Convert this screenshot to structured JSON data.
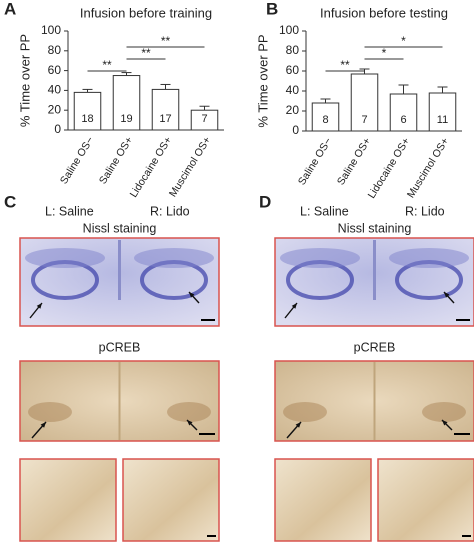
{
  "chart_data": [
    {
      "type": "bar",
      "panel_label": "A",
      "title": "Infusion before training",
      "y_label": "% Time over PP",
      "categories": [
        "Saline OS−",
        "Saline OS+",
        "Lidocaine OS+",
        "Muscimol OS+"
      ],
      "values": [
        38,
        55,
        41,
        20
      ],
      "errors": [
        3,
        3,
        5,
        4
      ],
      "n_labels": [
        "18",
        "19",
        "17",
        "7"
      ],
      "color": "#ffffff",
      "ylim": [
        0,
        100
      ],
      "yticks": [
        0,
        20,
        40,
        60,
        80,
        100
      ],
      "significance": [
        {
          "from": 0,
          "to": 1,
          "label": "**"
        },
        {
          "from": 1,
          "to": 2,
          "label": "**"
        },
        {
          "from": 1,
          "to": 3,
          "label": "**"
        }
      ]
    },
    {
      "type": "bar",
      "panel_label": "B",
      "title": "Infusion before testing",
      "y_label": "% Time over PP",
      "categories": [
        "Saline OS−",
        "Saline OS+",
        "Lidocaine OS+",
        "Muscimol OS+"
      ],
      "values": [
        28,
        57,
        37,
        38
      ],
      "errors": [
        4,
        5,
        9,
        6
      ],
      "n_labels": [
        "8",
        "7",
        "6",
        "11"
      ],
      "color": "#ffffff",
      "ylim": [
        0,
        100
      ],
      "yticks": [
        0,
        20,
        40,
        60,
        80,
        100
      ],
      "significance": [
        {
          "from": 0,
          "to": 1,
          "label": "**"
        },
        {
          "from": 1,
          "to": 2,
          "label": "*"
        },
        {
          "from": 1,
          "to": 3,
          "label": "*"
        }
      ]
    }
  ],
  "images": [
    {
      "panel_label": "C",
      "left": "L: Saline",
      "right": "R: Lido",
      "stains": [
        "Nissl staining",
        "pCREB"
      ]
    },
    {
      "panel_label": "D",
      "left": "L: Saline",
      "right": "R: Lido",
      "stains": [
        "Nissl staining",
        "pCREB"
      ]
    }
  ]
}
